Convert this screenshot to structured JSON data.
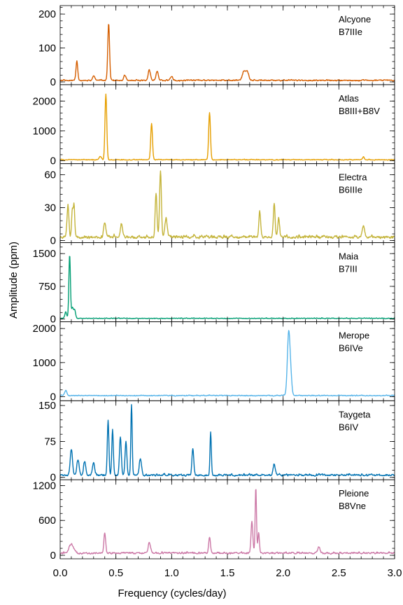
{
  "chart_data": {
    "type": "line",
    "xlabel": "Frequency (cycles/day)",
    "ylabel": "Amplitude (ppm)",
    "xlim": [
      0,
      3.0
    ],
    "xticks": [
      0.0,
      0.5,
      1.0,
      1.5,
      2.0,
      2.5,
      3.0
    ],
    "xtick_labels": [
      "0.0",
      "0.5",
      "1.0",
      "1.5",
      "2.0",
      "2.5",
      "3.0"
    ],
    "grid": false,
    "panels": [
      {
        "name": "Alcyone",
        "spectral_type": "B7IIIe",
        "color": "#d55e00",
        "ylim": [
          -8,
          225
        ],
        "yticks": [
          0,
          100,
          200
        ],
        "baseline": 6,
        "noise": 5,
        "peaks": [
          {
            "x": 0.15,
            "y": 55,
            "w": 0.008
          },
          {
            "x": 0.435,
            "y": 168,
            "w": 0.008
          },
          {
            "x": 0.8,
            "y": 30,
            "w": 0.01
          },
          {
            "x": 0.87,
            "y": 28,
            "w": 0.01
          },
          {
            "x": 0.58,
            "y": 15,
            "w": 0.01
          },
          {
            "x": 1.65,
            "y": 28,
            "w": 0.015
          },
          {
            "x": 1.68,
            "y": 22,
            "w": 0.012
          },
          {
            "x": 1.0,
            "y": 12,
            "w": 0.01
          },
          {
            "x": 0.3,
            "y": 12,
            "w": 0.01
          }
        ]
      },
      {
        "name": "Atlas",
        "spectral_type": "B8III+B8V",
        "color": "#e69f00",
        "ylim": [
          -100,
          2550
        ],
        "yticks": [
          0,
          1000,
          2000
        ],
        "baseline": 40,
        "noise": 35,
        "peaks": [
          {
            "x": 0.41,
            "y": 2200,
            "w": 0.008
          },
          {
            "x": 0.82,
            "y": 1200,
            "w": 0.008
          },
          {
            "x": 1.34,
            "y": 1580,
            "w": 0.008
          },
          {
            "x": 0.36,
            "y": 120,
            "w": 0.01
          },
          {
            "x": 2.72,
            "y": 100,
            "w": 0.008
          }
        ]
      },
      {
        "name": "Electra",
        "spectral_type": "B6IIIe",
        "color": "#c4b43a",
        "ylim": [
          -2,
          70
        ],
        "yticks": [
          0,
          30,
          60
        ],
        "baseline": 4,
        "noise": 4,
        "peaks": [
          {
            "x": 0.07,
            "y": 30,
            "w": 0.008
          },
          {
            "x": 0.11,
            "y": 26,
            "w": 0.007
          },
          {
            "x": 0.125,
            "y": 27,
            "w": 0.006
          },
          {
            "x": 0.86,
            "y": 40,
            "w": 0.008
          },
          {
            "x": 0.9,
            "y": 60,
            "w": 0.008
          },
          {
            "x": 0.95,
            "y": 18,
            "w": 0.01
          },
          {
            "x": 0.4,
            "y": 13,
            "w": 0.01
          },
          {
            "x": 0.55,
            "y": 12,
            "w": 0.01
          },
          {
            "x": 1.79,
            "y": 24,
            "w": 0.008
          },
          {
            "x": 1.92,
            "y": 30,
            "w": 0.008
          },
          {
            "x": 1.96,
            "y": 18,
            "w": 0.008
          },
          {
            "x": 2.72,
            "y": 10,
            "w": 0.01
          }
        ]
      },
      {
        "name": "Maia",
        "spectral_type": "B7III",
        "color": "#009e73",
        "ylim": [
          -60,
          1750
        ],
        "yticks": [
          0,
          750,
          1500
        ],
        "baseline": 20,
        "noise": 30,
        "peaks": [
          {
            "x": 0.085,
            "y": 1450,
            "w": 0.007
          },
          {
            "x": 0.11,
            "y": 250,
            "w": 0.008
          },
          {
            "x": 0.13,
            "y": 200,
            "w": 0.008
          },
          {
            "x": 0.05,
            "y": 150,
            "w": 0.008
          }
        ]
      },
      {
        "name": "Merope",
        "spectral_type": "B6IVe",
        "color": "#56b4e9",
        "ylim": [
          -120,
          2200
        ],
        "yticks": [
          0,
          1000,
          2000
        ],
        "baseline": 40,
        "noise": 40,
        "peaks": [
          {
            "x": 2.05,
            "y": 1850,
            "w": 0.012
          },
          {
            "x": 2.07,
            "y": 400,
            "w": 0.01
          },
          {
            "x": 0.05,
            "y": 150,
            "w": 0.01
          }
        ]
      },
      {
        "name": "Taygeta",
        "spectral_type": "B6IV",
        "color": "#0072b2",
        "ylim": [
          -5,
          160
        ],
        "yticks": [
          0,
          75,
          150
        ],
        "baseline": 6,
        "noise": 6,
        "peaks": [
          {
            "x": 0.1,
            "y": 55,
            "w": 0.01
          },
          {
            "x": 0.16,
            "y": 32,
            "w": 0.01
          },
          {
            "x": 0.22,
            "y": 28,
            "w": 0.01
          },
          {
            "x": 0.3,
            "y": 25,
            "w": 0.01
          },
          {
            "x": 0.43,
            "y": 115,
            "w": 0.007
          },
          {
            "x": 0.47,
            "y": 95,
            "w": 0.007
          },
          {
            "x": 0.54,
            "y": 80,
            "w": 0.008
          },
          {
            "x": 0.59,
            "y": 70,
            "w": 0.008
          },
          {
            "x": 0.64,
            "y": 148,
            "w": 0.006
          },
          {
            "x": 0.72,
            "y": 35,
            "w": 0.01
          },
          {
            "x": 1.19,
            "y": 55,
            "w": 0.008
          },
          {
            "x": 1.35,
            "y": 90,
            "w": 0.006
          },
          {
            "x": 1.92,
            "y": 22,
            "w": 0.01
          }
        ]
      },
      {
        "name": "Pleione",
        "spectral_type": "B8Vne",
        "color": "#cc79a7",
        "ylim": [
          -60,
          1300
        ],
        "yticks": [
          0,
          600,
          1200
        ],
        "baseline": 50,
        "noise": 40,
        "peaks": [
          {
            "x": 0.4,
            "y": 360,
            "w": 0.008
          },
          {
            "x": 1.34,
            "y": 270,
            "w": 0.008
          },
          {
            "x": 1.72,
            "y": 550,
            "w": 0.008
          },
          {
            "x": 1.755,
            "y": 1130,
            "w": 0.006
          },
          {
            "x": 1.78,
            "y": 350,
            "w": 0.007
          },
          {
            "x": 0.1,
            "y": 150,
            "w": 0.02
          },
          {
            "x": 0.8,
            "y": 180,
            "w": 0.01
          },
          {
            "x": 2.32,
            "y": 110,
            "w": 0.01
          }
        ]
      }
    ]
  }
}
